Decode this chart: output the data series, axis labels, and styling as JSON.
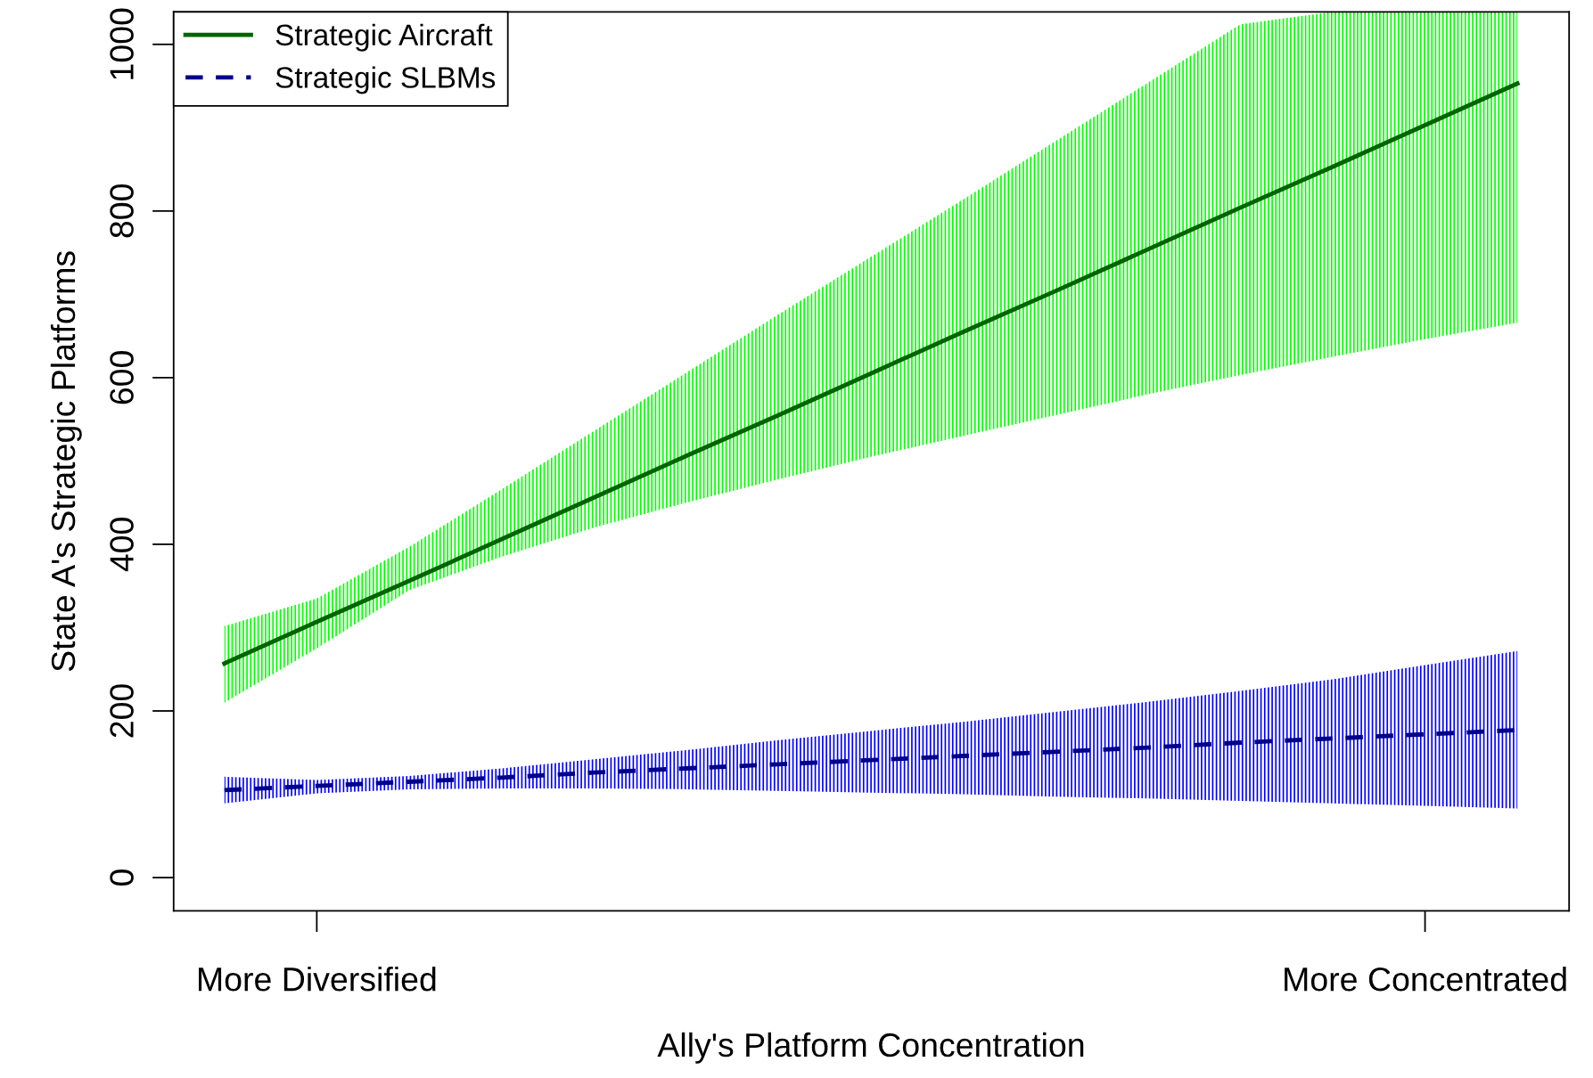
{
  "chart_data": {
    "type": "line",
    "xlabel": "Ally's Platform Concentration",
    "ylabel": "State A's Strategic Platforms",
    "categories": [
      null,
      "More Diversified",
      null,
      null,
      null,
      null,
      null,
      null,
      null,
      null,
      null,
      null,
      null,
      "More Concentrated",
      null
    ],
    "series": [
      {
        "name": "Strategic Aircraft",
        "color": "#006400",
        "line_style": "solid",
        "values": [
          257,
          307,
          356,
          406,
          456,
          506,
          555,
          605,
          655,
          704,
          754,
          804,
          853,
          903,
          953
        ],
        "lower": [
          210,
          275,
          345,
          385,
          420,
          450,
          478,
          505,
          530,
          555,
          580,
          603,
          625,
          646,
          666
        ],
        "upper": [
          302,
          335,
          397,
          466,
          536,
          606,
          676,
          745,
          814,
          884,
          954,
          1024,
          1039,
          1039,
          1039
        ]
      },
      {
        "name": "Strategic SLBMs",
        "color": "#00008b",
        "line_style": "dashed",
        "values": [
          105,
          110,
          115,
          120,
          126,
          131,
          136,
          141,
          146,
          151,
          156,
          162,
          167,
          172,
          177
        ],
        "lower": [
          89,
          101,
          106,
          107,
          107,
          106,
          104,
          102,
          100,
          97,
          95,
          92,
          89,
          86,
          83
        ],
        "upper": [
          121,
          117,
          122,
          131,
          142,
          153,
          165,
          176,
          187,
          199,
          211,
          224,
          238,
          255,
          272
        ]
      }
    ],
    "ylim": [
      -40,
      1039
    ],
    "yticks": [
      0,
      200,
      400,
      600,
      800,
      1000
    ],
    "grid": false,
    "legend": "top left",
    "marker": "none"
  }
}
